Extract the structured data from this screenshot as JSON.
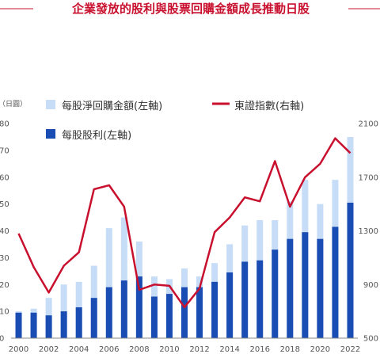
{
  "title": "企業發放的股利與股票回購金額成長推動日股",
  "chart_data": {
    "type": "bar",
    "title": "企業發放的股利與股票回購金額成長推動日股",
    "y_left_unit": "（日圓）",
    "x": [
      "2000",
      "2001",
      "2002",
      "2003",
      "2004",
      "2005",
      "2006",
      "2007",
      "2008",
      "2009",
      "2010",
      "2011",
      "2012",
      "2013",
      "2014",
      "2015",
      "2016",
      "2017",
      "2018",
      "2019",
      "2020",
      "2021",
      "2022"
    ],
    "x_tick_labels": [
      "2000",
      "2002",
      "2004",
      "2006",
      "2008",
      "2010",
      "2012",
      "2014",
      "2016",
      "2018",
      "2020",
      "2022"
    ],
    "y_left_ticks": [
      0,
      10,
      20,
      30,
      40,
      50,
      60,
      70,
      80
    ],
    "y_left_lim": [
      0,
      80
    ],
    "y_right_ticks": [
      500,
      900,
      1300,
      1700,
      2100
    ],
    "y_right_lim": [
      500,
      2100
    ],
    "series": [
      {
        "name": "每股淨回購金額(左軸)",
        "kind": "bar",
        "axis": "left",
        "color": "#c6dcf7",
        "values": [
          10,
          11,
          15,
          20,
          21,
          27,
          41,
          45,
          36,
          23,
          22,
          26,
          23,
          28,
          35,
          42,
          44,
          44,
          51,
          59,
          50,
          59,
          75
        ]
      },
      {
        "name": "每股股利(左軸)",
        "kind": "bar",
        "axis": "left",
        "color": "#1a4db3",
        "values": [
          9.5,
          9.5,
          8.5,
          10,
          11.5,
          15,
          19,
          21.5,
          23,
          15.5,
          16.5,
          19,
          19,
          21,
          24.5,
          28.5,
          29,
          33,
          37,
          39.5,
          37,
          41.5,
          50.5
        ]
      },
      {
        "name": "東證指數(右軸)",
        "kind": "line",
        "axis": "right",
        "color": "#c8102e",
        "values": [
          1280,
          1030,
          840,
          1040,
          1140,
          1610,
          1640,
          1480,
          860,
          900,
          890,
          730,
          870,
          1290,
          1400,
          1550,
          1520,
          1820,
          1480,
          1700,
          1800,
          1990,
          1880
        ]
      }
    ],
    "legend": [
      {
        "label": "每股淨回購金額(左軸)",
        "color": "#c6dcf7",
        "shape": "square"
      },
      {
        "label": "東證指數(右軸)",
        "color": "#c8102e",
        "shape": "line"
      },
      {
        "label": "每股股利(左軸)",
        "color": "#1a4db3",
        "shape": "square"
      }
    ],
    "legend_position": "top-left",
    "grid": false
  }
}
